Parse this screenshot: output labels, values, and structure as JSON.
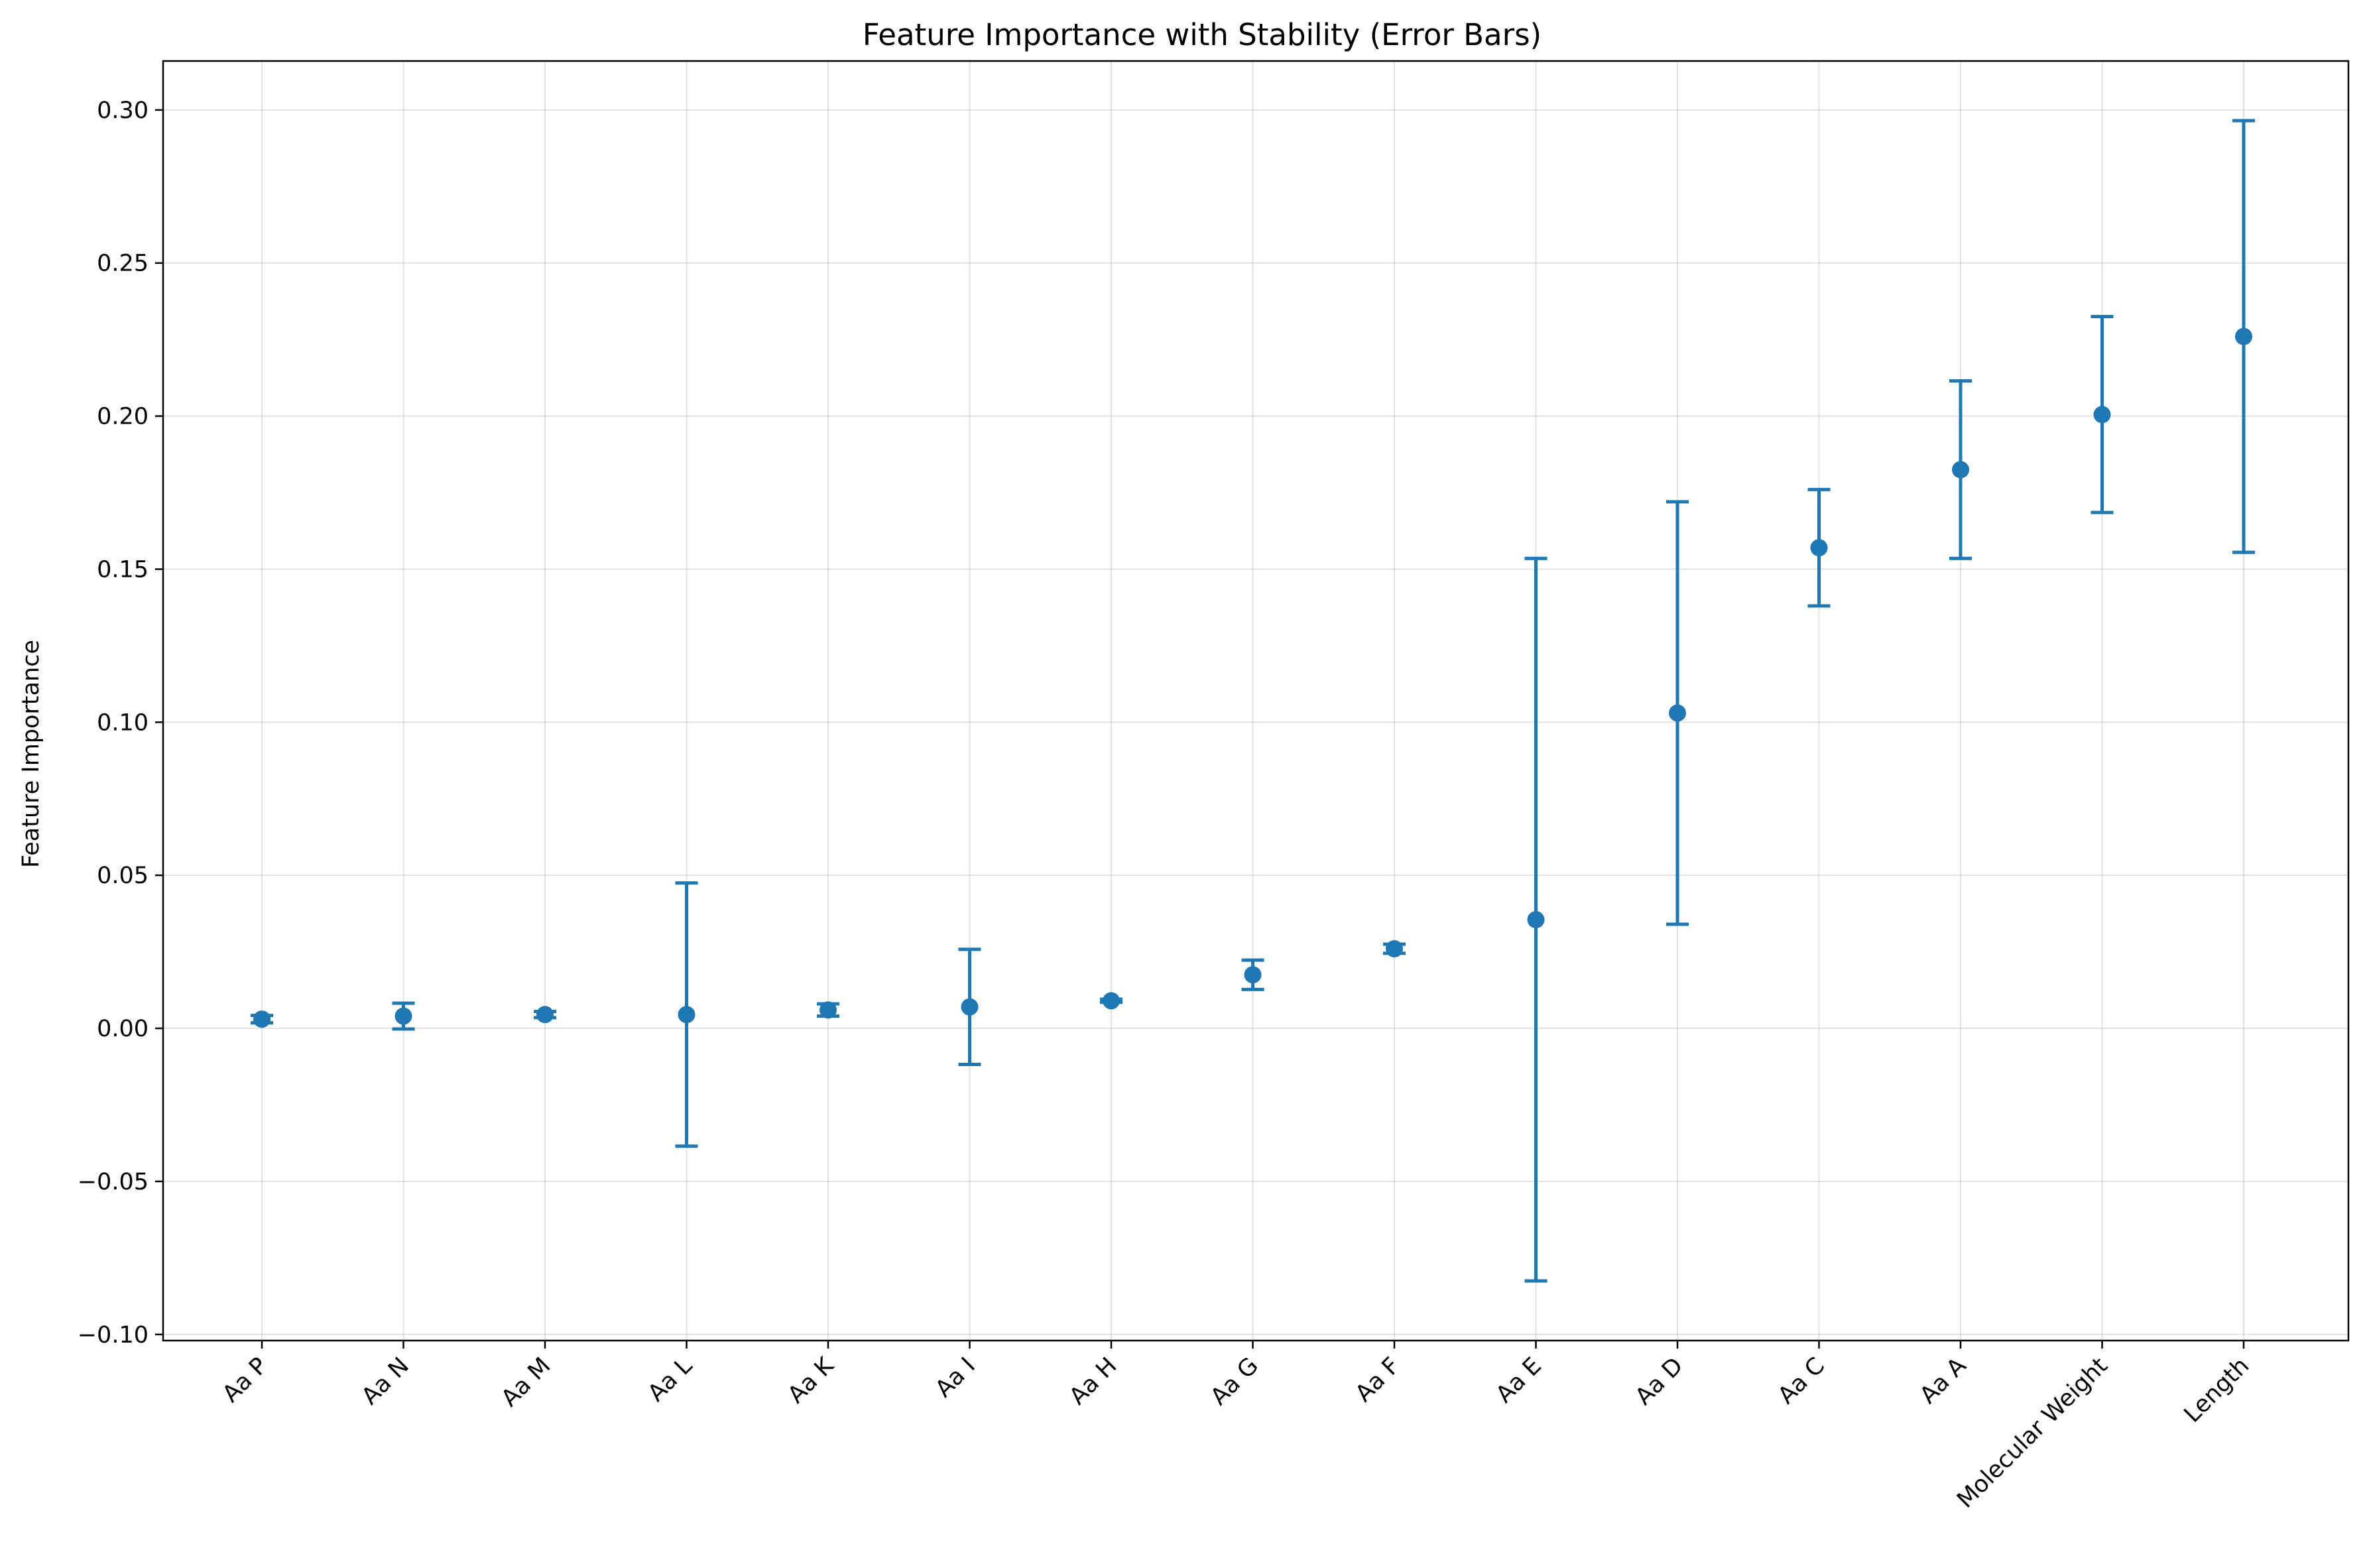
{
  "chart_data": {
    "type": "scatter",
    "title": "Feature Importance with Stability (Error Bars)",
    "xlabel": "",
    "ylabel": "Feature Importance",
    "ylim": [
      -0.102,
      0.316
    ],
    "yticks": [
      -0.1,
      -0.05,
      0.0,
      0.05,
      0.1,
      0.15,
      0.2,
      0.25,
      0.3
    ],
    "ytick_labels": [
      "−0.10",
      "−0.05",
      "0.00",
      "0.05",
      "0.10",
      "0.15",
      "0.20",
      "0.25",
      "0.30"
    ],
    "grid": true,
    "color": "#1f77b4",
    "categories": [
      "Aa P",
      "Aa N",
      "Aa M",
      "Aa L",
      "Aa K",
      "Aa I",
      "Aa H",
      "Aa G",
      "Aa F",
      "Aa E",
      "Aa D",
      "Aa C",
      "Aa A",
      "Molecular Weight",
      "Length"
    ],
    "values": [
      0.003,
      0.004,
      0.0045,
      0.0045,
      0.006,
      0.007,
      0.009,
      0.0175,
      0.026,
      0.0355,
      0.103,
      0.157,
      0.1825,
      0.2005,
      0.226
    ],
    "errors": [
      0.0012,
      0.0042,
      0.001,
      0.043,
      0.002,
      0.0188,
      0.0005,
      0.0048,
      0.0015,
      0.118,
      0.069,
      0.019,
      0.029,
      0.032,
      0.0705
    ]
  }
}
